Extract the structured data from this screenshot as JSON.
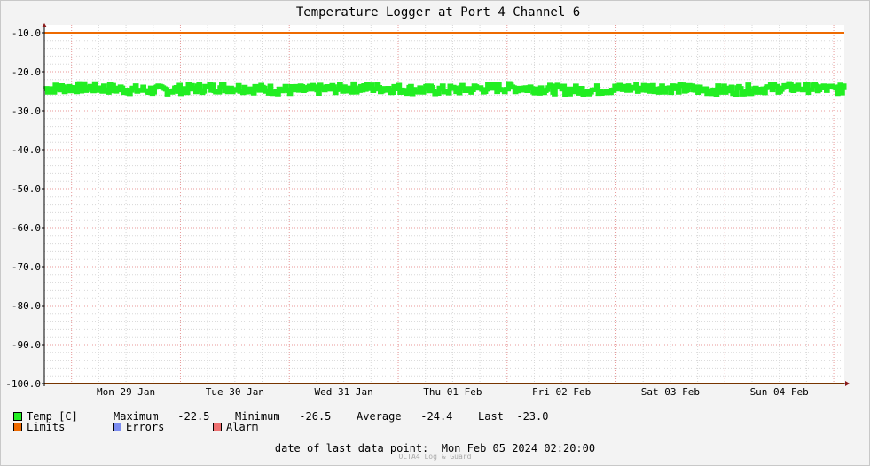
{
  "chart_data": {
    "type": "line",
    "title": "Temperature Logger at Port 4 Channel 6",
    "ylim": [
      -100,
      -10
    ],
    "y_ticks": [
      "-10.0",
      "-20.0",
      "-30.0",
      "-40.0",
      "-50.0",
      "-60.0",
      "-70.0",
      "-80.0",
      "-90.0",
      "-100.0"
    ],
    "x_range": [
      "2024-01-28T18:00",
      "2024-02-05T02:20"
    ],
    "x_ticks": [
      {
        "date": "2024-01-29T12:00",
        "label": "Mon 29 Jan"
      },
      {
        "date": "2024-01-30T12:00",
        "label": "Tue 30 Jan"
      },
      {
        "date": "2024-01-31T12:00",
        "label": "Wed 31 Jan"
      },
      {
        "date": "2024-02-01T12:00",
        "label": "Thu 01 Feb"
      },
      {
        "date": "2024-02-02T12:00",
        "label": "Fri 02 Feb"
      },
      {
        "date": "2024-02-03T12:00",
        "label": "Sat 03 Feb"
      },
      {
        "date": "2024-02-04T12:00",
        "label": "Sun 04 Feb"
      }
    ],
    "grid": true,
    "limits": [
      -10,
      -100
    ],
    "series": [
      {
        "name": "Temp [C]",
        "color": "#22ee22",
        "min": -26.5,
        "max": -22.5,
        "average": -24.4,
        "last": -23.0
      }
    ]
  },
  "legend": {
    "temp_label": "Temp [C]",
    "maximum_label": "Maximum",
    "maximum_value": "-22.5",
    "minimum_label": "Minimum",
    "minimum_value": "-26.5",
    "average_label": "Average",
    "average_value": "-24.4",
    "last_label": "Last",
    "last_value": "-23.0",
    "limits_label": "Limits",
    "errors_label": "Errors",
    "alarm_label": "Alarm",
    "colors": {
      "temp": "#22ee22",
      "limits": "#ee6a00",
      "errors": "#7b8cf0",
      "alarm": "#ee7070"
    }
  },
  "footer": {
    "last_point_label": "date of last data point:",
    "last_point_value": "Mon Feb 05 2024 02:20:00",
    "watermark": "OCTA4 Log & Guard"
  }
}
